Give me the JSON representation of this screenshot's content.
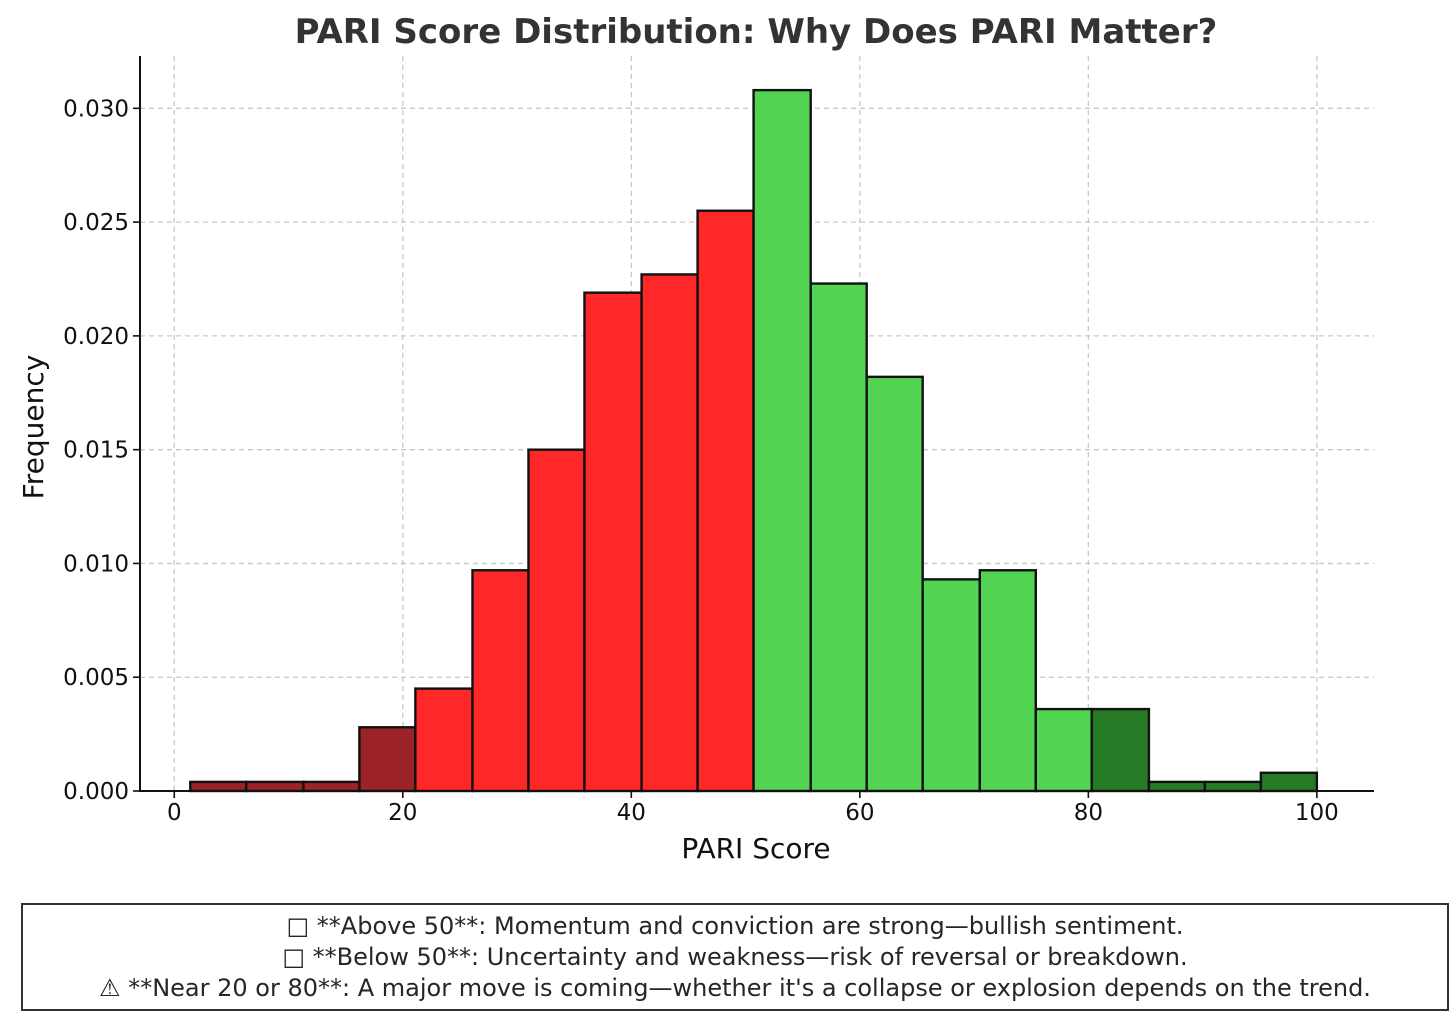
{
  "chart_data": {
    "type": "bar",
    "title": "PARI Score Distribution: Why Does PARI Matter?",
    "xlabel": "PARI Score",
    "ylabel": "Frequency",
    "xlim": [
      -3,
      105
    ],
    "ylim": [
      0,
      0.0323
    ],
    "grid": true,
    "x_ticks": [
      0,
      20,
      40,
      60,
      80,
      100
    ],
    "x_tick_labels": [
      "0",
      "20",
      "40",
      "60",
      "80",
      "100"
    ],
    "y_ticks": [
      0.0,
      0.005,
      0.01,
      0.015,
      0.02,
      0.025,
      0.03
    ],
    "y_tick_labels": [
      "0.000",
      "0.005",
      "0.010",
      "0.015",
      "0.020",
      "0.025",
      "0.030"
    ],
    "bin_edges": [
      1.4,
      6.3,
      11.3,
      16.2,
      21.1,
      26.1,
      31.0,
      35.9,
      40.9,
      45.8,
      50.7,
      55.7,
      60.6,
      65.5,
      70.5,
      75.4,
      80.3,
      85.3,
      90.2,
      95.1,
      100.0
    ],
    "values": [
      0.0004,
      0.0004,
      0.0004,
      0.0028,
      0.0045,
      0.0097,
      0.015,
      0.0219,
      0.0227,
      0.0255,
      0.0308,
      0.0223,
      0.0182,
      0.0093,
      0.0097,
      0.0036,
      0.0036,
      0.0004,
      0.0004,
      0.0008
    ],
    "bar_colors": [
      "#9b2226",
      "#9b2226",
      "#9b2226",
      "#9b2226",
      "#ff2828",
      "#ff2828",
      "#ff2828",
      "#ff2828",
      "#ff2828",
      "#ff2828",
      "#52d452",
      "#52d452",
      "#52d452",
      "#52d452",
      "#52d452",
      "#52d452",
      "#267a26",
      "#267a26",
      "#267a26",
      "#267a26"
    ]
  },
  "notes": [
    "□ **Above 50**: Momentum and conviction are strong—bullish sentiment.",
    "□ **Below 50**: Uncertainty and weakness—risk of reversal or breakdown.",
    "⚠ **Near 20 or 80**: A major move is coming—whether it's a collapse or explosion depends on the trend."
  ]
}
